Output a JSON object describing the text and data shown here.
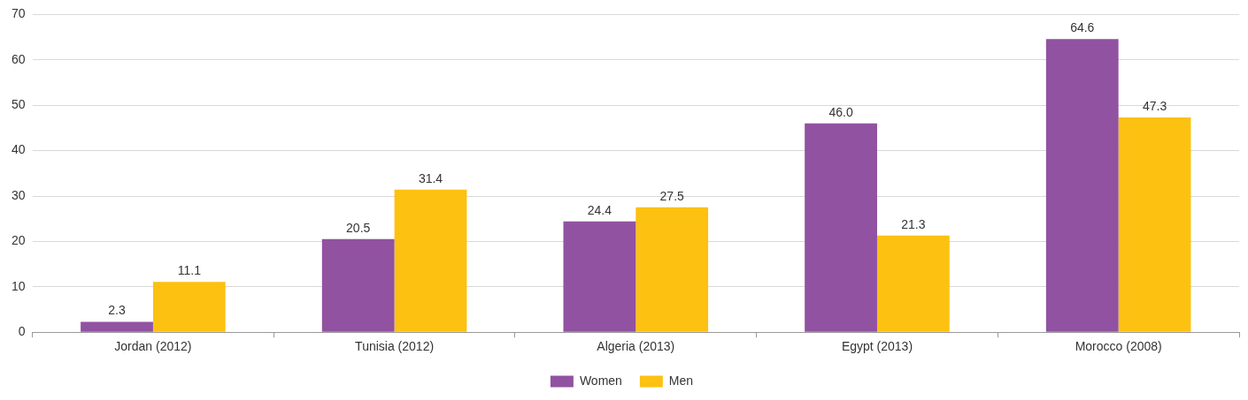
{
  "chart_data": {
    "type": "bar",
    "categories": [
      "Jordan (2012)",
      "Tunisia (2012)",
      "Algeria (2013)",
      "Egypt (2013)",
      "Morocco (2008)"
    ],
    "series": [
      {
        "name": "Women",
        "color": "#9152a1",
        "values": [
          2.3,
          20.5,
          24.4,
          46.0,
          64.6
        ],
        "value_labels": [
          "2.3",
          "20.5",
          "24.4",
          "46.0",
          "64.6"
        ]
      },
      {
        "name": "Men",
        "color": "#fcc111",
        "values": [
          11.1,
          31.4,
          27.5,
          21.3,
          47.3
        ],
        "value_labels": [
          "11.1",
          "31.4",
          "27.5",
          "21.3",
          "47.3"
        ]
      }
    ],
    "ylim": [
      0,
      70
    ],
    "yticks": [
      0,
      10,
      20,
      30,
      40,
      50,
      60,
      70
    ],
    "grid": "y",
    "legend": "bottom"
  }
}
